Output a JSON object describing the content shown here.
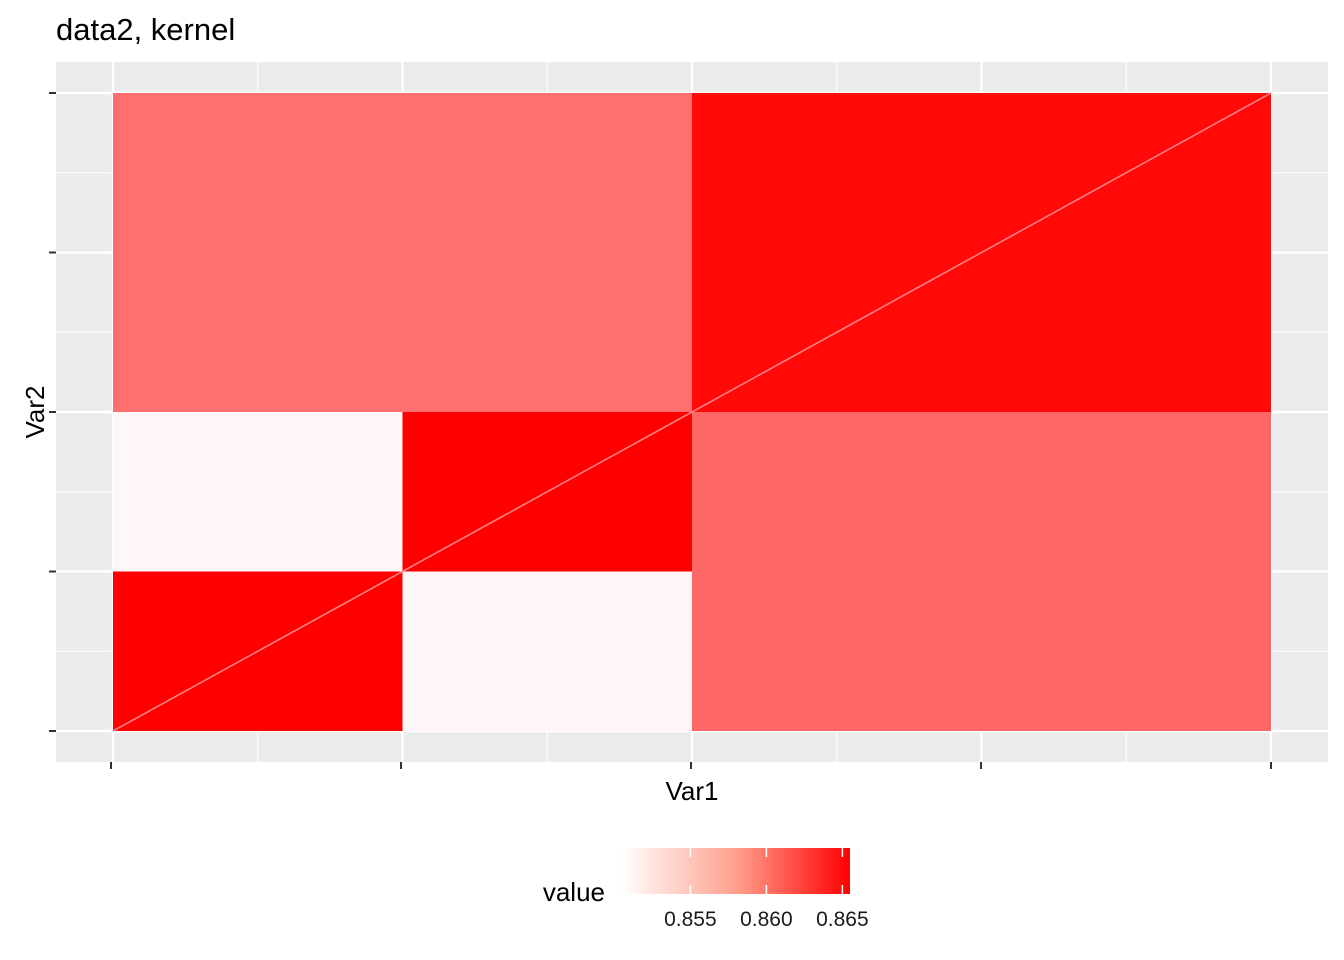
{
  "chart_data": {
    "type": "heatmap",
    "title": "data2, kernel",
    "xlabel": "Var1",
    "ylabel": "Var2",
    "x_tick_labels": [],
    "y_tick_labels": [],
    "grid": true,
    "legend": {
      "title": "value",
      "position": "bottom",
      "ticks": [
        0.855,
        0.86,
        0.865
      ],
      "tick_labels": [
        "0.855",
        "0.860",
        "0.865"
      ],
      "range": [
        0.8505,
        0.8655
      ],
      "low_color": "#FFFFFF",
      "high_color": "#FF0000"
    },
    "groups": {
      "x": [
        1,
        1,
        2,
        2
      ],
      "y": [
        1,
        1,
        2,
        2
      ]
    },
    "block_values": [
      [
        0.8655,
        0.851,
        0.8595,
        0.8595
      ],
      [
        0.851,
        0.8655,
        0.8595,
        0.8595
      ],
      [
        0.859,
        0.859,
        0.865,
        0.865
      ],
      [
        0.859,
        0.859,
        0.865,
        0.865
      ]
    ],
    "diagonal_value": 0.858
  },
  "colors": {
    "panel_background": "#EBEBEB",
    "grid_line": "#FFFFFF",
    "text": "#000000",
    "tick_text": "#4D4D4D"
  }
}
